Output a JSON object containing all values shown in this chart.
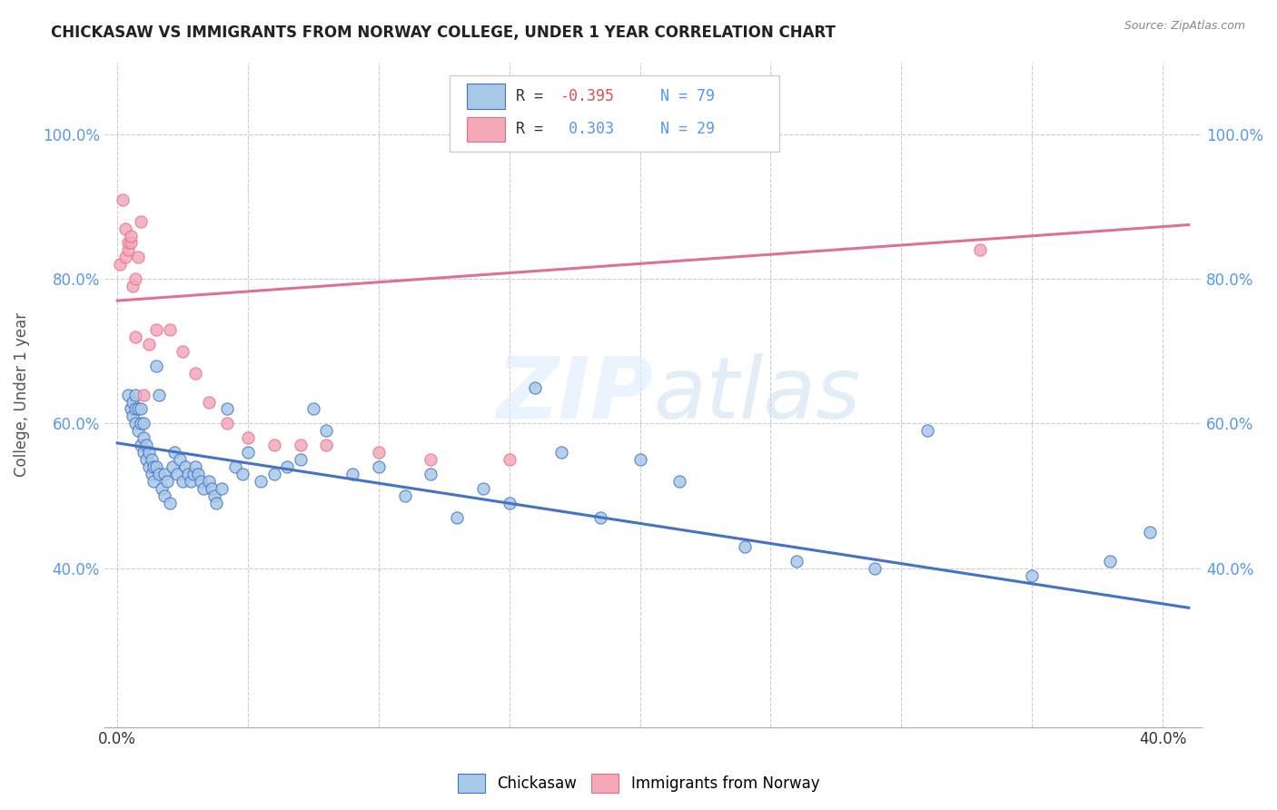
{
  "title": "CHICKASAW VS IMMIGRANTS FROM NORWAY COLLEGE, UNDER 1 YEAR CORRELATION CHART",
  "source": "Source: ZipAtlas.com",
  "xlabel_ticks_show": [
    "0.0%",
    "40.0%"
  ],
  "xlabel_tick_vals_show": [
    0.0,
    0.4
  ],
  "xlabel_tick_vals_all": [
    0.0,
    0.05,
    0.1,
    0.15,
    0.2,
    0.25,
    0.3,
    0.35,
    0.4
  ],
  "ylabel": "College, Under 1 year",
  "ylabel_ticks": [
    "40.0%",
    "60.0%",
    "80.0%",
    "100.0%"
  ],
  "ylabel_tick_vals": [
    0.4,
    0.6,
    0.8,
    1.0
  ],
  "xlim": [
    -0.005,
    0.415
  ],
  "ylim": [
    0.18,
    1.1
  ],
  "watermark": "ZIPatlas",
  "color_blue": "#a8c8e8",
  "color_pink": "#f4a8b8",
  "line_color_blue": "#4472c4",
  "line_color_pink": "#e07090",
  "blue_x": [
    0.004,
    0.005,
    0.006,
    0.006,
    0.007,
    0.007,
    0.007,
    0.008,
    0.008,
    0.009,
    0.009,
    0.009,
    0.01,
    0.01,
    0.01,
    0.011,
    0.011,
    0.012,
    0.012,
    0.013,
    0.013,
    0.014,
    0.014,
    0.015,
    0.015,
    0.016,
    0.016,
    0.017,
    0.018,
    0.018,
    0.019,
    0.02,
    0.021,
    0.022,
    0.023,
    0.024,
    0.025,
    0.026,
    0.027,
    0.028,
    0.029,
    0.03,
    0.031,
    0.032,
    0.033,
    0.035,
    0.036,
    0.037,
    0.038,
    0.04,
    0.042,
    0.045,
    0.048,
    0.05,
    0.055,
    0.06,
    0.065,
    0.07,
    0.075,
    0.08,
    0.09,
    0.1,
    0.11,
    0.12,
    0.13,
    0.14,
    0.15,
    0.16,
    0.17,
    0.185,
    0.2,
    0.215,
    0.24,
    0.26,
    0.29,
    0.31,
    0.35,
    0.38,
    0.395
  ],
  "blue_y": [
    0.64,
    0.62,
    0.63,
    0.61,
    0.6,
    0.62,
    0.64,
    0.59,
    0.62,
    0.57,
    0.6,
    0.62,
    0.56,
    0.58,
    0.6,
    0.55,
    0.57,
    0.54,
    0.56,
    0.53,
    0.55,
    0.52,
    0.54,
    0.68,
    0.54,
    0.64,
    0.53,
    0.51,
    0.5,
    0.53,
    0.52,
    0.49,
    0.54,
    0.56,
    0.53,
    0.55,
    0.52,
    0.54,
    0.53,
    0.52,
    0.53,
    0.54,
    0.53,
    0.52,
    0.51,
    0.52,
    0.51,
    0.5,
    0.49,
    0.51,
    0.62,
    0.54,
    0.53,
    0.56,
    0.52,
    0.53,
    0.54,
    0.55,
    0.62,
    0.59,
    0.53,
    0.54,
    0.5,
    0.53,
    0.47,
    0.51,
    0.49,
    0.65,
    0.56,
    0.47,
    0.55,
    0.52,
    0.43,
    0.41,
    0.4,
    0.59,
    0.39,
    0.41,
    0.45
  ],
  "pink_x": [
    0.001,
    0.002,
    0.003,
    0.003,
    0.004,
    0.004,
    0.005,
    0.005,
    0.006,
    0.007,
    0.007,
    0.008,
    0.009,
    0.01,
    0.012,
    0.015,
    0.02,
    0.025,
    0.03,
    0.035,
    0.042,
    0.05,
    0.06,
    0.07,
    0.08,
    0.1,
    0.12,
    0.15,
    0.33
  ],
  "pink_y": [
    0.82,
    0.91,
    0.83,
    0.87,
    0.84,
    0.85,
    0.85,
    0.86,
    0.79,
    0.8,
    0.72,
    0.83,
    0.88,
    0.64,
    0.71,
    0.73,
    0.73,
    0.7,
    0.67,
    0.63,
    0.6,
    0.58,
    0.57,
    0.57,
    0.57,
    0.56,
    0.55,
    0.55,
    0.84
  ],
  "blue_trend_x": [
    0.0,
    0.41
  ],
  "blue_trend_y": [
    0.573,
    0.345
  ],
  "pink_trend_x": [
    0.0,
    0.41
  ],
  "pink_trend_y": [
    0.77,
    0.875
  ]
}
